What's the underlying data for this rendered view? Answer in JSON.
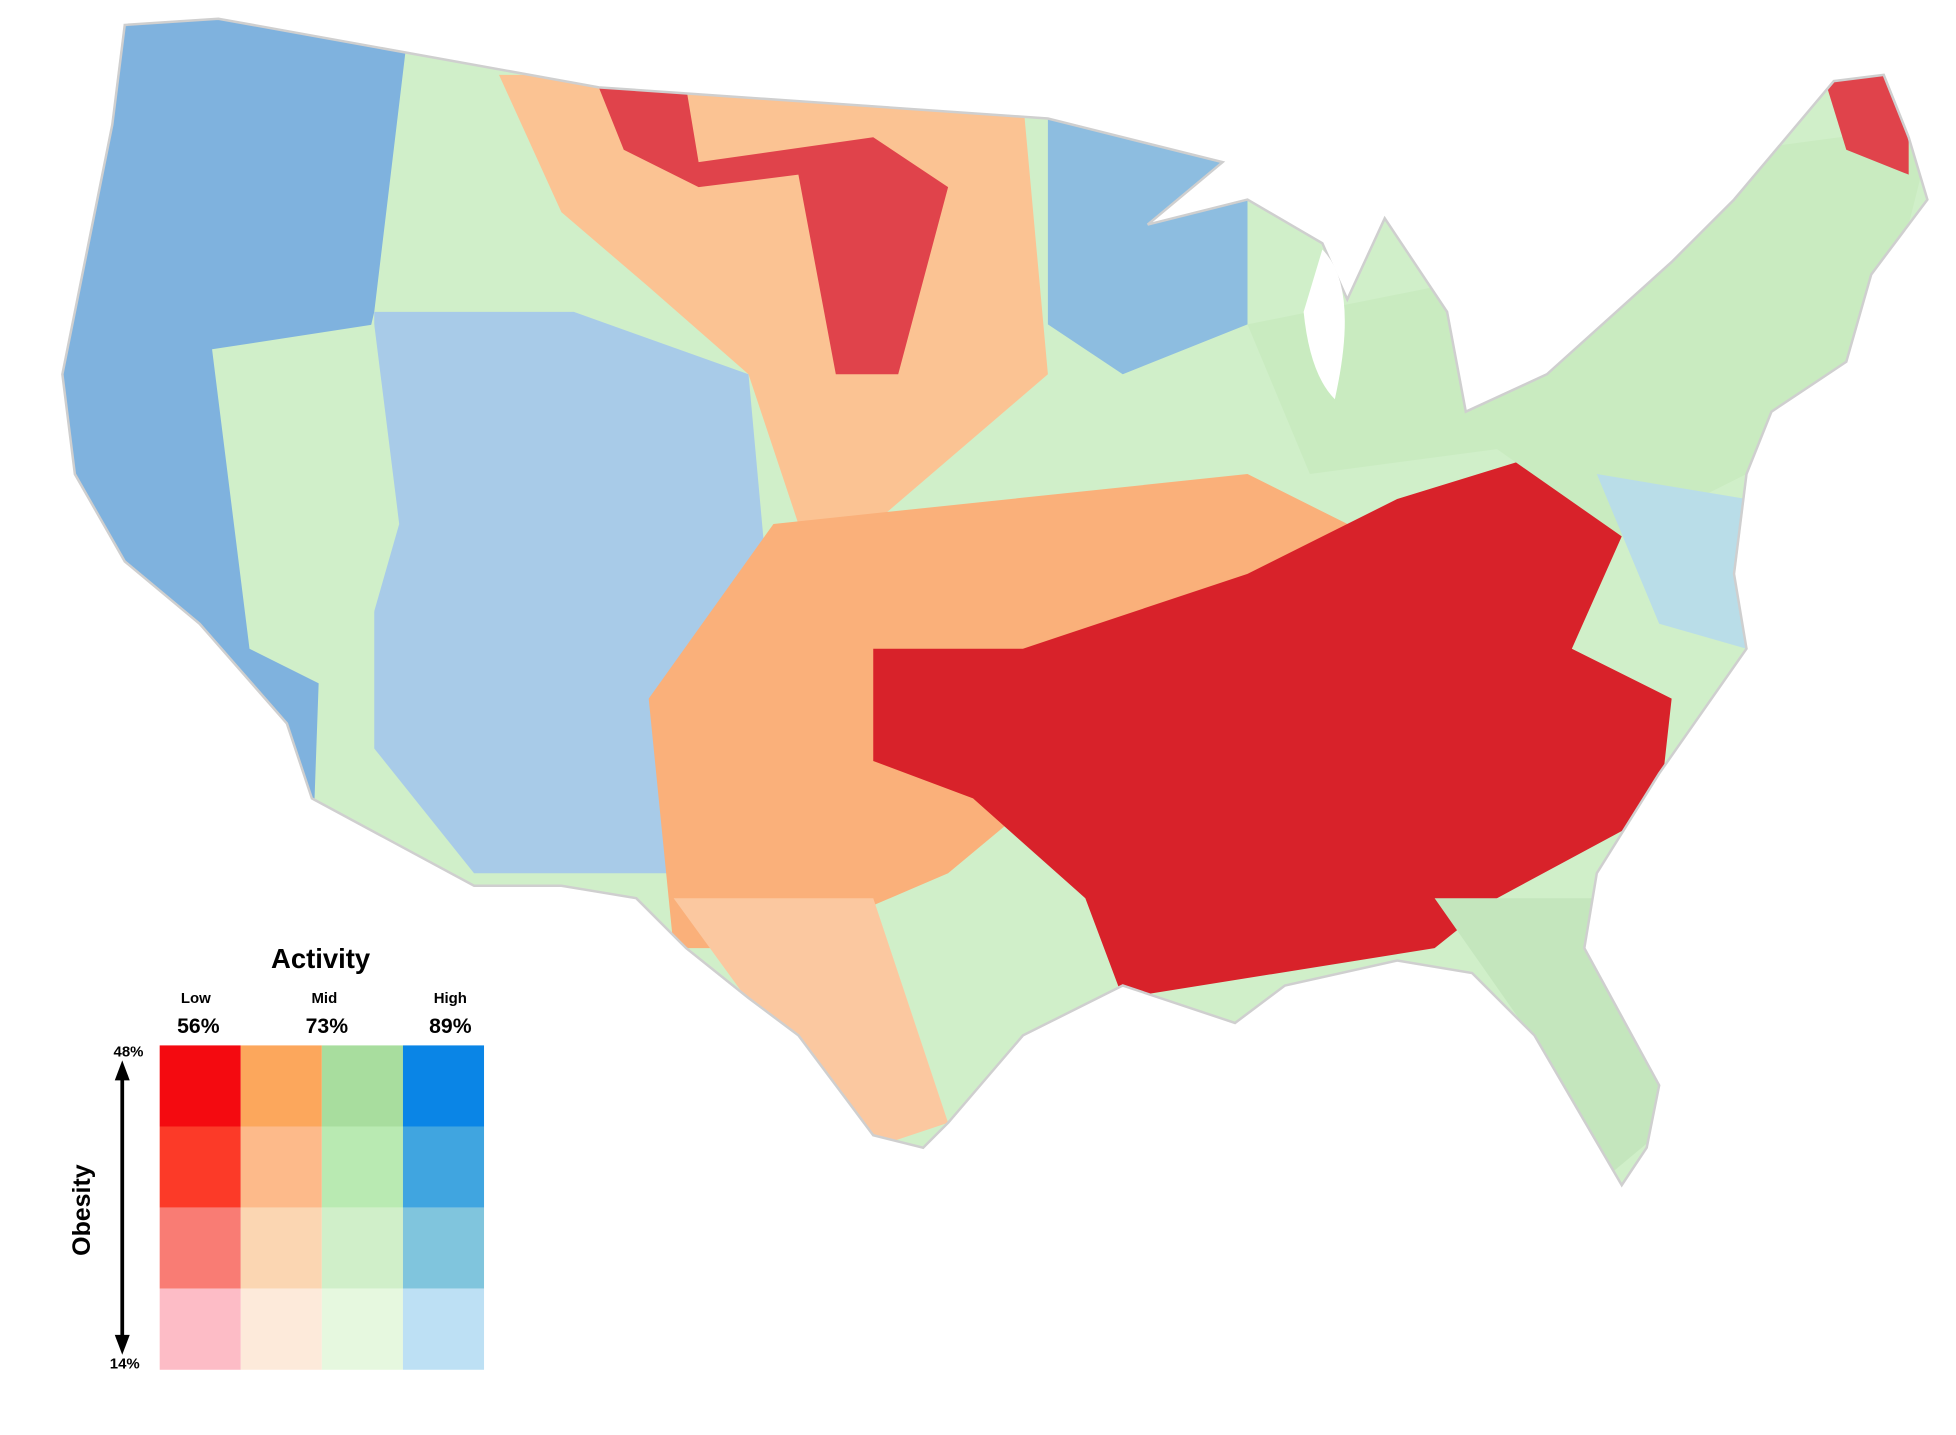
{
  "legend": {
    "title": "Activity",
    "columns": [
      {
        "label": "Low",
        "value": "56%"
      },
      {
        "label": "Mid",
        "value": "73%"
      },
      {
        "label": "High",
        "value": "89%"
      }
    ],
    "axis_label": "Obesity",
    "axis_top": "48%",
    "axis_bottom": "14%",
    "colors": [
      [
        "#f40a10",
        "#fca75c",
        "#a8dd9e",
        "#0a85e6"
      ],
      [
        "#fc3a28",
        "#fdba8a",
        "#b9eab2",
        "#40a5e0"
      ],
      [
        "#f97c74",
        "#fbd6b2",
        "#d0efc9",
        "#80c5dd"
      ],
      [
        "#fdbcc6",
        "#fdeada",
        "#e6f8df",
        "#bde0f4"
      ]
    ]
  }
}
